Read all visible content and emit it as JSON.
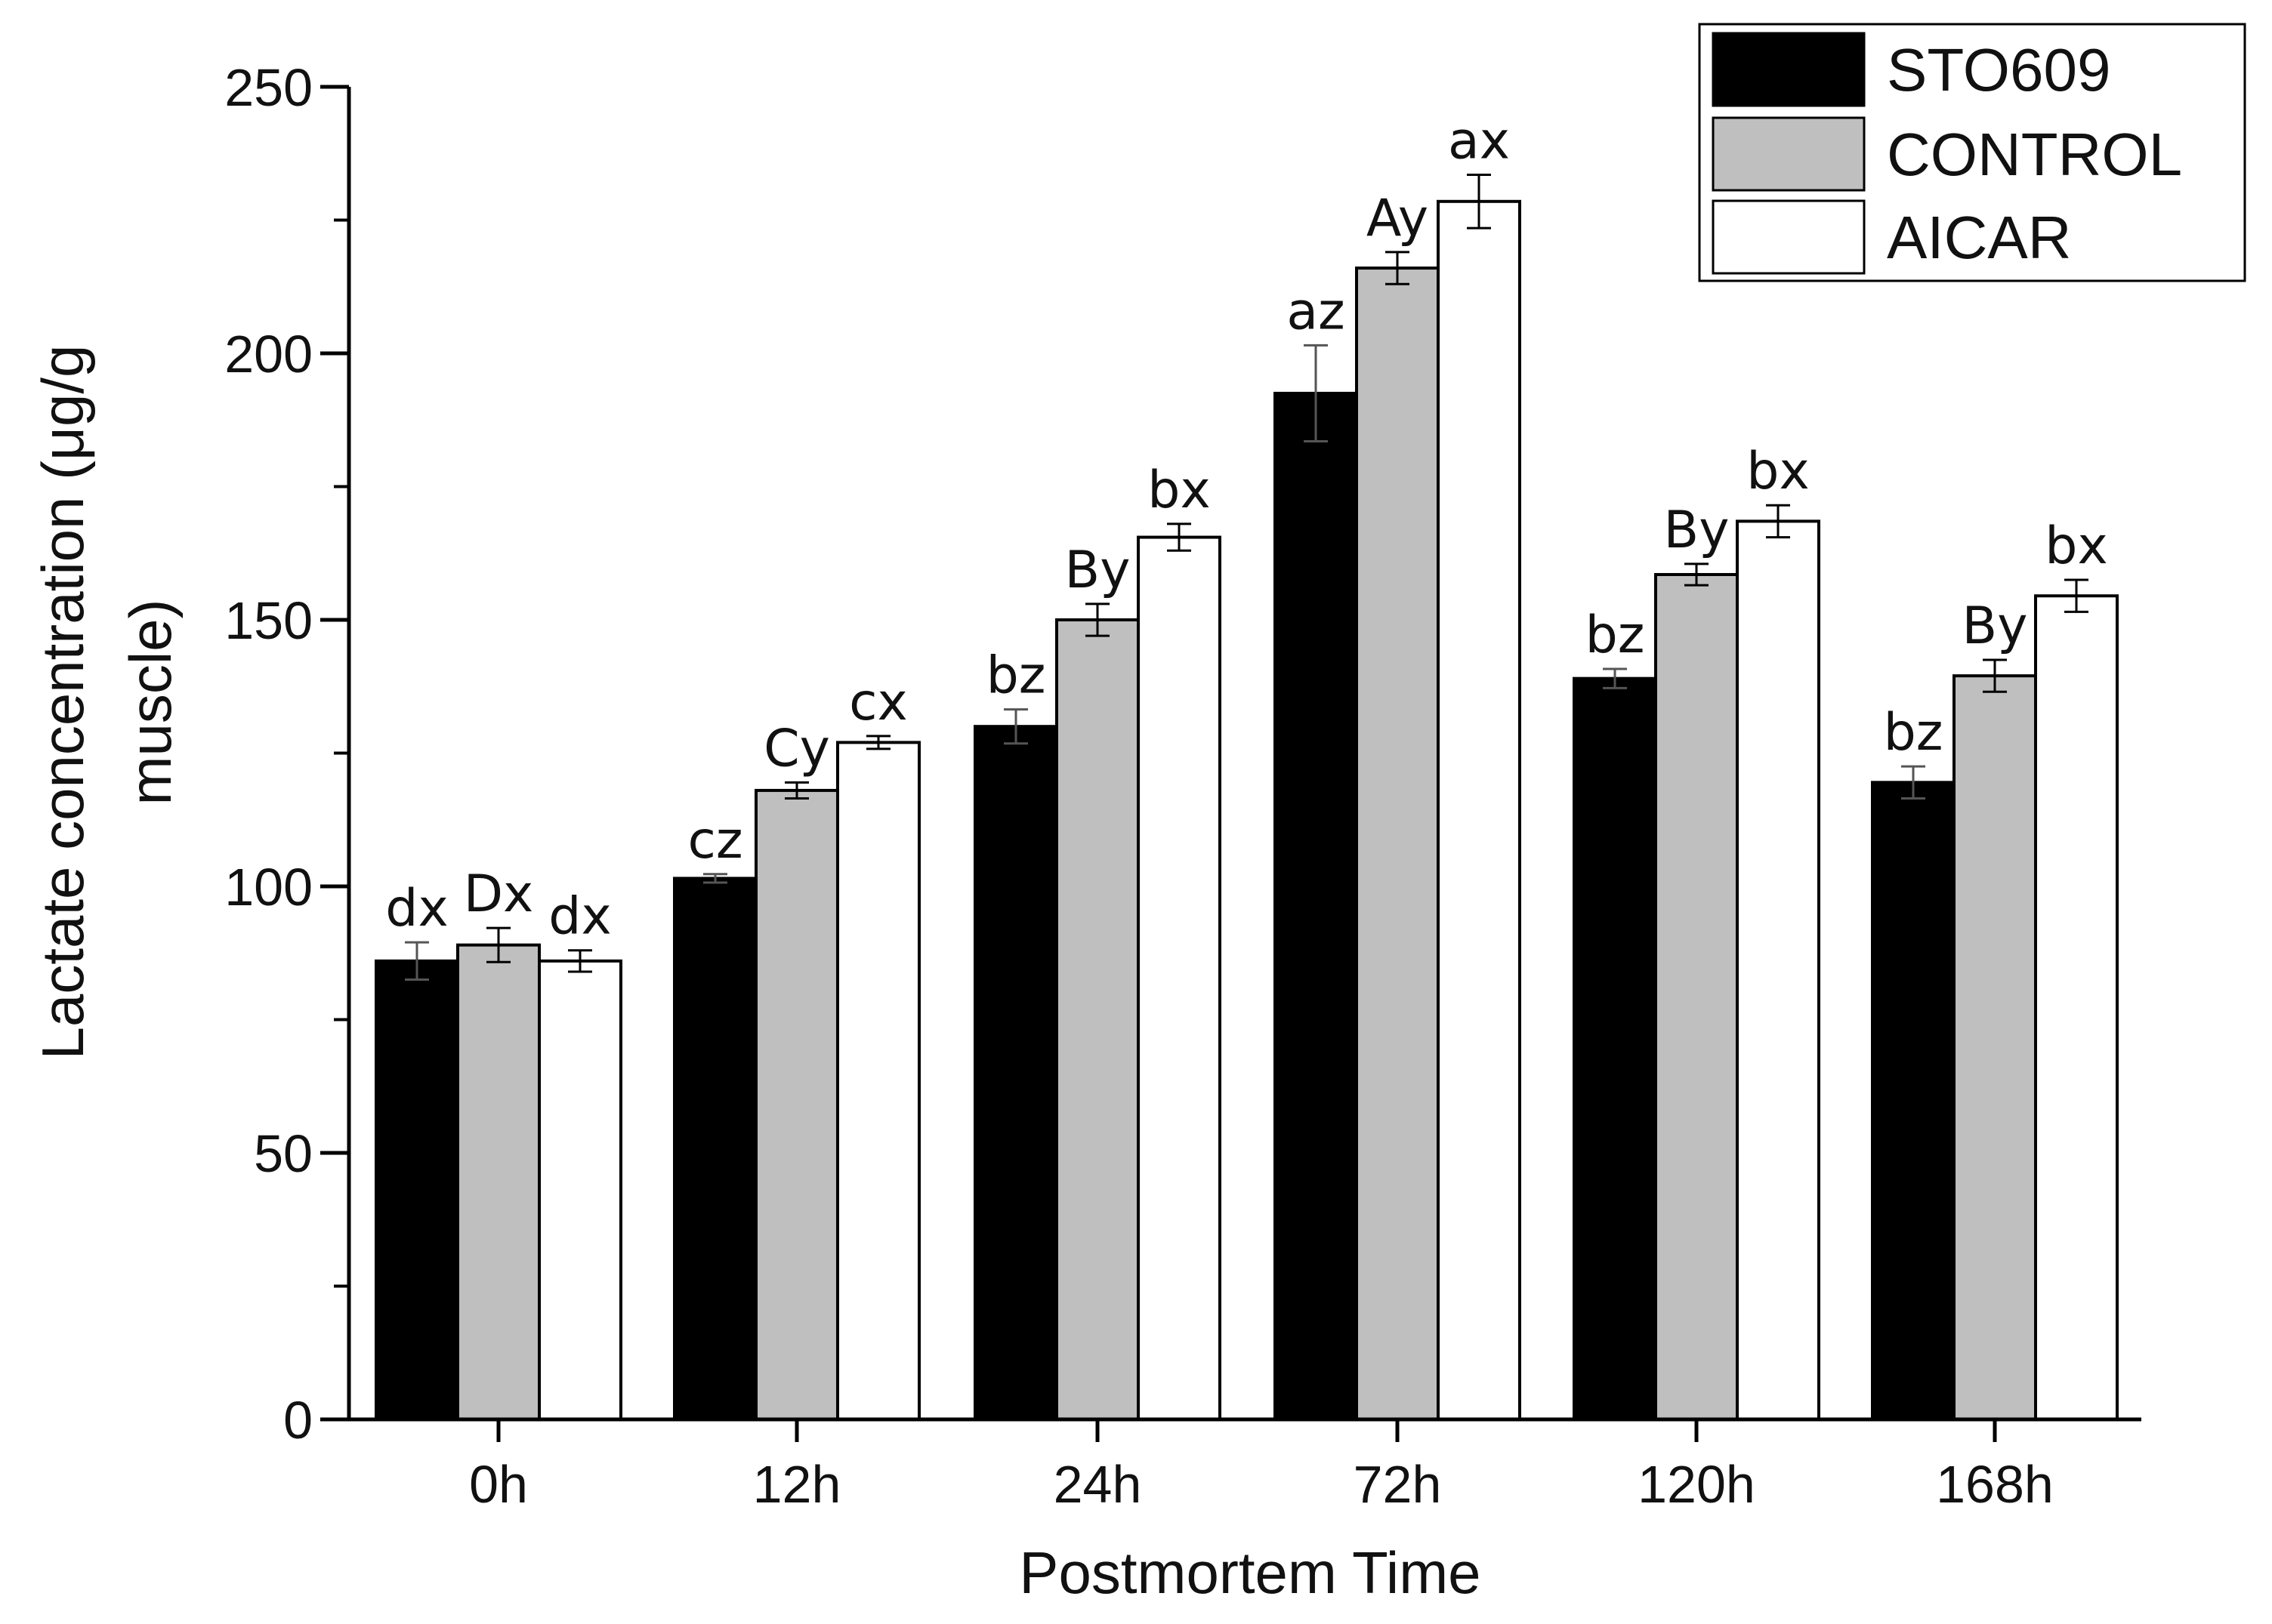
{
  "chart_data": {
    "type": "bar",
    "title": "",
    "xlabel": "Postmortem Time",
    "ylabel_lines": [
      "Lactate concentration (μg/g",
      "muscle)"
    ],
    "categories": [
      "0h",
      "12h",
      "24h",
      "72h",
      "120h",
      "168h"
    ],
    "ylim": [
      0,
      250
    ],
    "yticks": [
      0,
      50,
      100,
      150,
      200,
      250
    ],
    "grid": false,
    "legend_position": "top-right",
    "series": [
      {
        "name": "STO609",
        "color": "#000000",
        "values": [
          86,
          101.5,
          130,
          192.5,
          139,
          119.5
        ],
        "errors": [
          3.5,
          0.8,
          3.2,
          9,
          1.8,
          3
        ],
        "labels": [
          "dx",
          "cz",
          "bz",
          "az",
          "bz",
          "bz"
        ]
      },
      {
        "name": "CONTROL",
        "color": "#bfbfbf",
        "values": [
          89,
          118,
          150,
          216,
          158.5,
          139.5
        ],
        "errors": [
          3.2,
          1.5,
          3,
          3,
          2,
          3
        ],
        "labels": [
          "Dx",
          "Cy",
          "By",
          "Ay",
          "By",
          "By"
        ]
      },
      {
        "name": "AICAR",
        "color": "#ffffff",
        "values": [
          86,
          127,
          165.5,
          228.5,
          168.5,
          154.5
        ],
        "errors": [
          2,
          1.2,
          2.5,
          5,
          3,
          3
        ],
        "labels": [
          "dx",
          "cx",
          "bx",
          "ax",
          "bx",
          "bx"
        ]
      }
    ]
  }
}
